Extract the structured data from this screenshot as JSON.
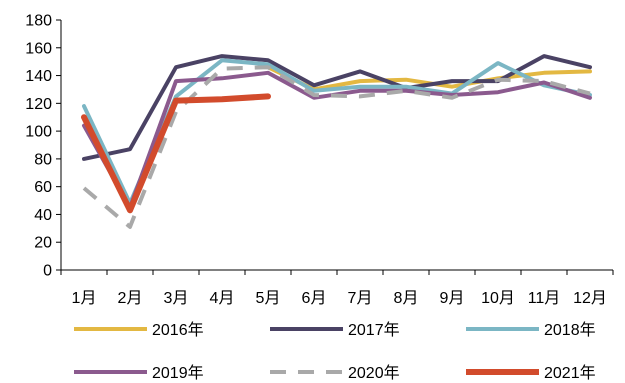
{
  "chart_data": {
    "type": "line",
    "title": "",
    "xlabel": "",
    "ylabel": "",
    "ylim": [
      0,
      180
    ],
    "yticks": [
      0,
      20,
      40,
      60,
      80,
      100,
      120,
      140,
      160,
      180
    ],
    "categories": [
      "1月",
      "2月",
      "3月",
      "4月",
      "5月",
      "6月",
      "7月",
      "8月",
      "9月",
      "10月",
      "11月",
      "12月"
    ],
    "grid": false,
    "legend": "bottom",
    "series": [
      {
        "name": "2016年",
        "color": "#E3B842",
        "dashed": false,
        "values": [
          null,
          null,
          null,
          null,
          146,
          130,
          136,
          137,
          132,
          138,
          142,
          143
        ]
      },
      {
        "name": "2017年",
        "color": "#4A4264",
        "dashed": false,
        "values": [
          80,
          87,
          146,
          154,
          151,
          133,
          143,
          131,
          136,
          136,
          154,
          146
        ]
      },
      {
        "name": "2018年",
        "color": "#7BB6C4",
        "dashed": false,
        "values": [
          118,
          48,
          125,
          151,
          148,
          129,
          132,
          132,
          127,
          149,
          133,
          126
        ]
      },
      {
        "name": "2019年",
        "color": "#8B5A8E",
        "dashed": false,
        "values": [
          104,
          45,
          136,
          138,
          142,
          124,
          129,
          129,
          126,
          128,
          135,
          124
        ]
      },
      {
        "name": "2020年",
        "color": "#A9A9A9",
        "dashed": true,
        "values": [
          59,
          31,
          114,
          145,
          146,
          126,
          125,
          129,
          124,
          137,
          136,
          127
        ]
      },
      {
        "name": "2021年",
        "color": "#D24B2C",
        "dashed": false,
        "values": [
          110,
          43,
          122,
          123,
          125,
          null,
          null,
          null,
          null,
          null,
          null,
          null
        ]
      }
    ]
  }
}
